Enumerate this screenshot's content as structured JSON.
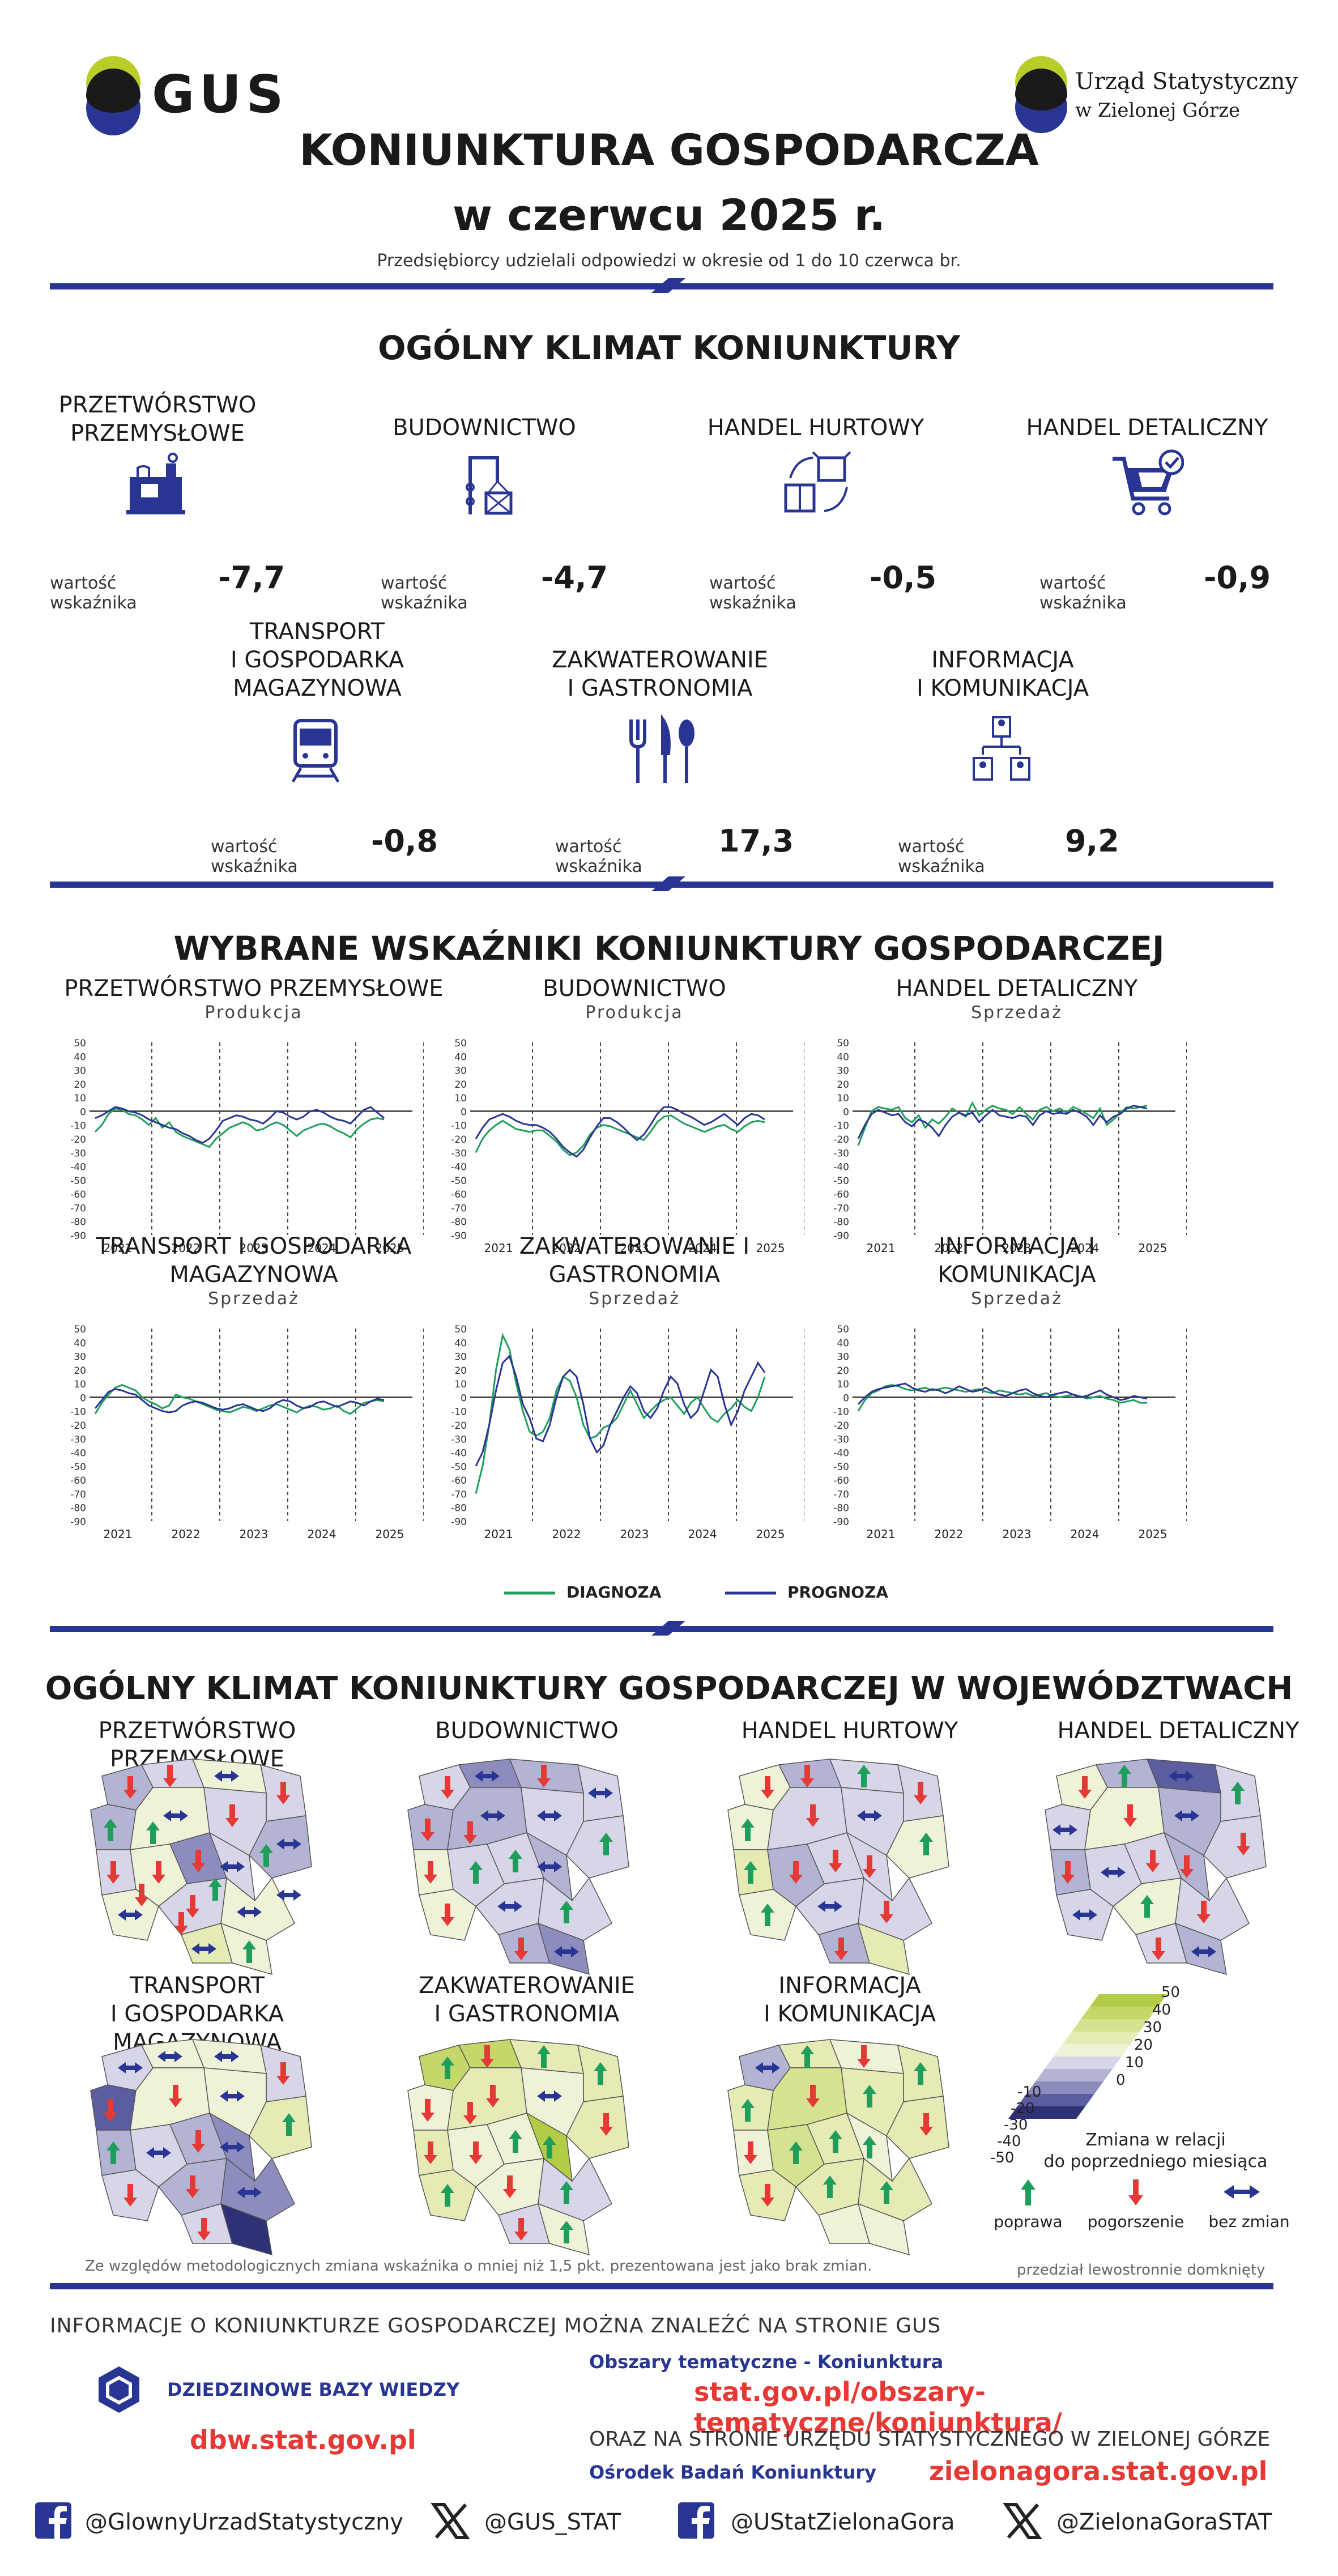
{
  "header": {
    "gus_logo_text": "GUS",
    "office_name_line1": "Urząd Statystyczny",
    "office_name_line2": "w Zielonej Górze",
    "title": "KONIUNKTURA GOSPODARCZA",
    "subtitle": "w czerwcu 2025 r.",
    "response_note": "Przedsiębiorcy udzielali odpowiedzi w okresie od 1 do 10 czerwca br."
  },
  "climate": {
    "title": "OGÓLNY KLIMAT KONIUNKTURY",
    "indicator_label": "wartość wskaźnika",
    "sectors": [
      {
        "line1": "PRZETWÓRSTWO",
        "line2": "PRZEMYSŁOWE",
        "line3": "",
        "value": "-7,7",
        "icon": "factory-icon"
      },
      {
        "line1": "BUDOWNICTWO",
        "line2": "",
        "line3": "",
        "value": "-4,7",
        "icon": "crane-icon"
      },
      {
        "line1": "HANDEL HURTOWY",
        "line2": "",
        "line3": "",
        "value": "-0,5",
        "icon": "boxes-icon"
      },
      {
        "line1": "HANDEL DETALICZNY",
        "line2": "",
        "line3": "",
        "value": "-0,9",
        "icon": "cart-icon"
      },
      {
        "line1": "TRANSPORT",
        "line2": "I GOSPODARKA",
        "line3": "MAGAZYNOWA",
        "value": "-0,8",
        "icon": "train-icon"
      },
      {
        "line1": "ZAKWATEROWANIE",
        "line2": "I GASTRONOMIA",
        "line3": "",
        "value": "17,3",
        "icon": "cutlery-icon"
      },
      {
        "line1": "INFORMACJA",
        "line2": "I KOMUNIKACJA",
        "line3": "",
        "value": "9,2",
        "icon": "network-icon"
      }
    ]
  },
  "indicators": {
    "title": "WYBRANE WSKAŹNIKI KONIUNKTURY GOSPODARCZEJ",
    "legend": {
      "diagnoza": "DIAGNOZA",
      "prognoza": "PROGNOZA"
    },
    "colors": {
      "diagnoza": "#1e9e5a",
      "prognoza": "#283593"
    }
  },
  "chart_data": [
    {
      "type": "line",
      "title": "PRZETWÓRSTWO PRZEMYSŁOWE",
      "subtitle": "Produkcja",
      "x_ticks": [
        "2021",
        "2022",
        "2023",
        "2024",
        "2025"
      ],
      "ylim": [
        -90,
        50
      ],
      "y_ticks": [
        50,
        40,
        30,
        20,
        10,
        0,
        -10,
        -20,
        -30,
        -40,
        -50,
        -60,
        -70,
        -80,
        -90
      ],
      "series": [
        {
          "name": "DIAGNOZA",
          "values": [
            -15,
            -10,
            -2,
            2,
            1,
            -2,
            -3,
            -6,
            -10,
            -5,
            -12,
            -8,
            -15,
            -18,
            -20,
            -22,
            -24,
            -26,
            -20,
            -16,
            -12,
            -10,
            -8,
            -10,
            -14,
            -13,
            -10,
            -8,
            -10,
            -14,
            -18,
            -14,
            -12,
            -10,
            -9,
            -11,
            -14,
            -16,
            -19,
            -13,
            -9,
            -6,
            -5,
            -6
          ]
        },
        {
          "name": "PROGNOZA",
          "values": [
            -5,
            -3,
            0,
            3,
            2,
            0,
            -1,
            -3,
            -6,
            -8,
            -10,
            -12,
            -13,
            -16,
            -18,
            -21,
            -23,
            -20,
            -14,
            -7,
            -5,
            -3,
            -4,
            -6,
            -7,
            -9,
            -5,
            0,
            -1,
            -4,
            -6,
            -4,
            0,
            1,
            -1,
            -4,
            -6,
            -7,
            -9,
            -4,
            1,
            3,
            -1,
            -5
          ]
        }
      ]
    },
    {
      "type": "line",
      "title": "BUDOWNICTWO",
      "subtitle": "Produkcja",
      "x_ticks": [
        "2021",
        "2022",
        "2023",
        "2024",
        "2025"
      ],
      "ylim": [
        -90,
        50
      ],
      "y_ticks": [
        50,
        40,
        30,
        20,
        10,
        0,
        -10,
        -20,
        -30,
        -40,
        -50,
        -60,
        -70,
        -80,
        -90
      ],
      "series": [
        {
          "name": "DIAGNOZA",
          "values": [
            -30,
            -20,
            -14,
            -10,
            -7,
            -10,
            -13,
            -14,
            -15,
            -14,
            -14,
            -18,
            -22,
            -28,
            -32,
            -30,
            -25,
            -17,
            -12,
            -10,
            -11,
            -13,
            -15,
            -17,
            -19,
            -21,
            -15,
            -8,
            -4,
            -3,
            -6,
            -9,
            -11,
            -13,
            -15,
            -13,
            -11,
            -10,
            -13,
            -15,
            -11,
            -8,
            -7,
            -8
          ]
        },
        {
          "name": "PROGNOZA",
          "values": [
            -20,
            -12,
            -6,
            -4,
            -2,
            -4,
            -7,
            -9,
            -10,
            -10,
            -12,
            -15,
            -20,
            -26,
            -30,
            -33,
            -28,
            -19,
            -11,
            -5,
            -5,
            -8,
            -12,
            -17,
            -21,
            -17,
            -10,
            -2,
            3,
            3,
            1,
            -2,
            -4,
            -7,
            -10,
            -8,
            -5,
            -2,
            -6,
            -10,
            -5,
            -2,
            -3,
            -6
          ]
        }
      ]
    },
    {
      "type": "line",
      "title": "HANDEL DETALICZNY",
      "subtitle": "Sprzedaż",
      "x_ticks": [
        "2021",
        "2022",
        "2023",
        "2024",
        "2025"
      ],
      "ylim": [
        -90,
        50
      ],
      "y_ticks": [
        50,
        40,
        30,
        20,
        10,
        0,
        -10,
        -20,
        -30,
        -40,
        -50,
        -60,
        -70,
        -80,
        -90
      ],
      "series": [
        {
          "name": "DIAGNOZA",
          "values": [
            -25,
            -12,
            0,
            3,
            2,
            1,
            3,
            -5,
            -8,
            -3,
            -12,
            -6,
            -9,
            -4,
            2,
            -1,
            -4,
            6,
            -3,
            1,
            4,
            2,
            1,
            -2,
            3,
            -2,
            -6,
            1,
            3,
            0,
            2,
            -1,
            3,
            1,
            -2,
            -5,
            2,
            -10,
            -6,
            -1,
            3,
            2,
            3,
            4
          ]
        },
        {
          "name": "PROGNOZA",
          "values": [
            -20,
            -10,
            -2,
            1,
            -1,
            -3,
            -2,
            -8,
            -11,
            -6,
            -8,
            -12,
            -18,
            -10,
            -4,
            -1,
            -3,
            -1,
            -8,
            -3,
            1,
            -3,
            -4,
            -5,
            -3,
            -4,
            -10,
            -3,
            0,
            -2,
            -1,
            -2,
            1,
            -1,
            -4,
            -10,
            -3,
            -8,
            -4,
            -2,
            2,
            4,
            3,
            2
          ]
        }
      ]
    },
    {
      "type": "line",
      "title": "TRANSPORT I GOSPODARKA MAGAZYNOWA",
      "subtitle": "Sprzedaż",
      "x_ticks": [
        "2021",
        "2022",
        "2023",
        "2024",
        "2025"
      ],
      "ylim": [
        -90,
        50
      ],
      "y_ticks": [
        50,
        40,
        30,
        20,
        10,
        0,
        -10,
        -20,
        -30,
        -40,
        -50,
        -60,
        -70,
        -80,
        -90
      ],
      "series": [
        {
          "name": "DIAGNOZA",
          "values": [
            -12,
            -4,
            2,
            7,
            9,
            7,
            5,
            0,
            -3,
            -5,
            -8,
            -6,
            2,
            0,
            -1,
            -3,
            -5,
            -7,
            -9,
            -10,
            -11,
            -9,
            -7,
            -8,
            -10,
            -8,
            -6,
            -5,
            -7,
            -9,
            -11,
            -8,
            -6,
            -7,
            -9,
            -8,
            -6,
            -10,
            -12,
            -8,
            -4,
            -3,
            -2,
            -3
          ]
        },
        {
          "name": "PROGNOZA",
          "values": [
            -8,
            -2,
            4,
            6,
            5,
            3,
            2,
            -2,
            -6,
            -8,
            -10,
            -11,
            -10,
            -6,
            -4,
            -3,
            -4,
            -6,
            -8,
            -9,
            -8,
            -6,
            -5,
            -7,
            -9,
            -10,
            -8,
            -4,
            -2,
            -3,
            -6,
            -8,
            -7,
            -4,
            -3,
            -5,
            -7,
            -5,
            -3,
            -4,
            -6,
            -3,
            -1,
            -2
          ]
        }
      ]
    },
    {
      "type": "line",
      "title": "ZAKWATEROWANIE I GASTRONOMIA",
      "subtitle": "Sprzedaż",
      "x_ticks": [
        "2021",
        "2022",
        "2023",
        "2024",
        "2025"
      ],
      "ylim": [
        -90,
        50
      ],
      "y_ticks": [
        50,
        40,
        30,
        20,
        10,
        0,
        -10,
        -20,
        -30,
        -40,
        -50,
        -60,
        -70,
        -80,
        -90
      ],
      "series": [
        {
          "name": "DIAGNOZA",
          "values": [
            -70,
            -50,
            -20,
            20,
            45,
            35,
            10,
            -10,
            -25,
            -28,
            -25,
            -15,
            5,
            15,
            12,
            0,
            -20,
            -30,
            -28,
            -22,
            -20,
            -15,
            -5,
            5,
            -5,
            -15,
            -10,
            -5,
            -2,
            0,
            -6,
            -12,
            -4,
            0,
            -8,
            -15,
            -18,
            -12,
            -8,
            -2,
            -7,
            -10,
            0,
            15
          ]
        },
        {
          "name": "PROGNOZA",
          "values": [
            -50,
            -40,
            -20,
            5,
            25,
            30,
            15,
            -5,
            -15,
            -30,
            -32,
            -20,
            0,
            15,
            20,
            15,
            -5,
            -30,
            -40,
            -35,
            -20,
            -10,
            0,
            8,
            3,
            -10,
            -15,
            -8,
            5,
            15,
            10,
            -5,
            -15,
            -10,
            5,
            20,
            15,
            -5,
            -20,
            -10,
            5,
            15,
            25,
            18
          ]
        }
      ]
    },
    {
      "type": "line",
      "title": "INFORMACJA I KOMUNIKACJA",
      "subtitle": "Sprzedaż",
      "x_ticks": [
        "2021",
        "2022",
        "2023",
        "2024",
        "2025"
      ],
      "ylim": [
        -90,
        50
      ],
      "y_ticks": [
        50,
        40,
        30,
        20,
        10,
        0,
        -10,
        -20,
        -30,
        -40,
        -50,
        -60,
        -70,
        -80,
        -90
      ],
      "series": [
        {
          "name": "DIAGNOZA",
          "values": [
            -10,
            -2,
            3,
            5,
            8,
            9,
            8,
            6,
            5,
            6,
            7,
            5,
            6,
            7,
            6,
            5,
            4,
            5,
            6,
            4,
            3,
            5,
            4,
            3,
            2,
            3,
            1,
            2,
            3,
            1,
            0,
            1,
            2,
            1,
            -1,
            0,
            1,
            -1,
            -2,
            -4,
            -3,
            -2,
            -4,
            -4
          ]
        },
        {
          "name": "PROGNOZA",
          "values": [
            -5,
            0,
            4,
            6,
            7,
            8,
            9,
            10,
            7,
            5,
            4,
            6,
            5,
            3,
            5,
            8,
            6,
            4,
            5,
            7,
            4,
            2,
            1,
            3,
            5,
            6,
            3,
            1,
            0,
            2,
            3,
            4,
            2,
            0,
            1,
            3,
            5,
            2,
            0,
            -2,
            -1,
            1,
            0,
            -1
          ]
        }
      ]
    }
  ],
  "regions": {
    "title": "OGÓLNY KLIMAT KONIUNKTURY GOSPODARCZEJ W WOJEWÓDZTWACH",
    "maps": [
      {
        "line1": "PRZETWÓRSTWO PRZEMYSŁOWE",
        "line2": "",
        "arrows": [
          "red",
          "red",
          "blue",
          "red",
          "green",
          "blue",
          "red",
          "blue",
          "red",
          "red",
          "red",
          "blue",
          "blue",
          "red",
          "blue",
          "blue",
          "green",
          "green",
          "green",
          "green",
          "red",
          "red",
          "blue"
        ]
      },
      {
        "line1": "BUDOWNICTWO",
        "line2": "",
        "arrows": [
          "red",
          "blue",
          "red",
          "blue",
          "red",
          "blue",
          "blue",
          "green",
          "red",
          "green",
          "green",
          "blue",
          "red",
          "blue",
          "green",
          "red",
          "blue",
          "red"
        ]
      },
      {
        "line1": "HANDEL HURTOWY",
        "line2": "",
        "arrows": [
          "red",
          "red",
          "green",
          "red",
          "green",
          "red",
          "blue",
          "green",
          "green",
          "red",
          "red",
          "red",
          "green",
          "blue",
          "red",
          "red"
        ]
      },
      {
        "line1": "HANDEL DETALICZNY",
        "line2": "",
        "arrows": [
          "red",
          "green",
          "blue",
          "green",
          "blue",
          "red",
          "blue",
          "red",
          "red",
          "blue",
          "red",
          "red",
          "blue",
          "green",
          "red",
          "red",
          "blue"
        ]
      },
      {
        "line1": "TRANSPORT",
        "line2": "I GOSPODARKA MAGAZYNOWA",
        "arrows": [
          "blue",
          "blue",
          "blue",
          "red",
          "red",
          "red",
          "blue",
          "green",
          "green",
          "blue",
          "red",
          "blue",
          "red",
          "red",
          "blue",
          "red"
        ]
      },
      {
        "line1": "ZAKWATEROWANIE",
        "line2": "I GASTRONOMIA",
        "arrows": [
          "green",
          "red",
          "green",
          "green",
          "red",
          "red",
          "blue",
          "red",
          "red",
          "red",
          "green",
          "green",
          "green",
          "red",
          "green",
          "red",
          "green",
          "red"
        ]
      },
      {
        "line1": "INFORMACJA",
        "line2": "I KOMUNIKACJA",
        "arrows": [
          "blue",
          "green",
          "red",
          "green",
          "green",
          "red",
          "green",
          "red",
          "red",
          "green",
          "green",
          "green",
          "red",
          "green",
          "green"
        ]
      }
    ],
    "scale": {
      "positive_ticks": [
        "50",
        "40",
        "30",
        "20",
        "10",
        "0"
      ],
      "negative_ticks": [
        "-10",
        "-20",
        "-30",
        "-40",
        "-50"
      ],
      "colors": [
        "#2e3175",
        "#5c5d9e",
        "#8d8dbd",
        "#b3b3d4",
        "#d6d6e8",
        "#f0f2d8",
        "#e6ebb5",
        "#d6e290",
        "#c4d86a",
        "#b2cd45"
      ],
      "legend_title_line1": "Zmiana w relacji",
      "legend_title_line2": "do poprzedniego miesiąca",
      "up_label": "poprawa",
      "down_label": "pogorszenie",
      "flat_label": "bez zmian"
    },
    "method_note": "Ze względów metodologicznych zmiana wskaźnika o mniej niż 1,5 pkt. prezentowana jest jako brak zmian.",
    "interval_note": "przedział lewostronnie domknięty"
  },
  "footer": {
    "info_text": "INFORMACJE O KONIUNKTURZE GOSPODARCZEJ MOŻNA ZNALEŹĆ NA STRONIE GUS",
    "dbw_label": "DZIEDZINOWE BAZY WIEDZY",
    "dbw_url": "dbw.stat.gov.pl",
    "topic_label": "Obszary tematyczne - Koniunktura",
    "topic_url": "stat.gov.pl/obszary-tematyczne/koniunktura/",
    "also_text": "ORAZ NA STRONIE URZĘDU STATYSTYCZNEGO W ZIELONEJ GÓRZE",
    "center_label": "Ośrodek Badań Koniunktury",
    "zg_url": "zielonagora.stat.gov.pl",
    "social": [
      "@GlownyUrzadStatystyczny",
      "@GUS_STAT",
      "@UStatZielonaGora",
      "@ZielonaGoraSTAT"
    ]
  }
}
